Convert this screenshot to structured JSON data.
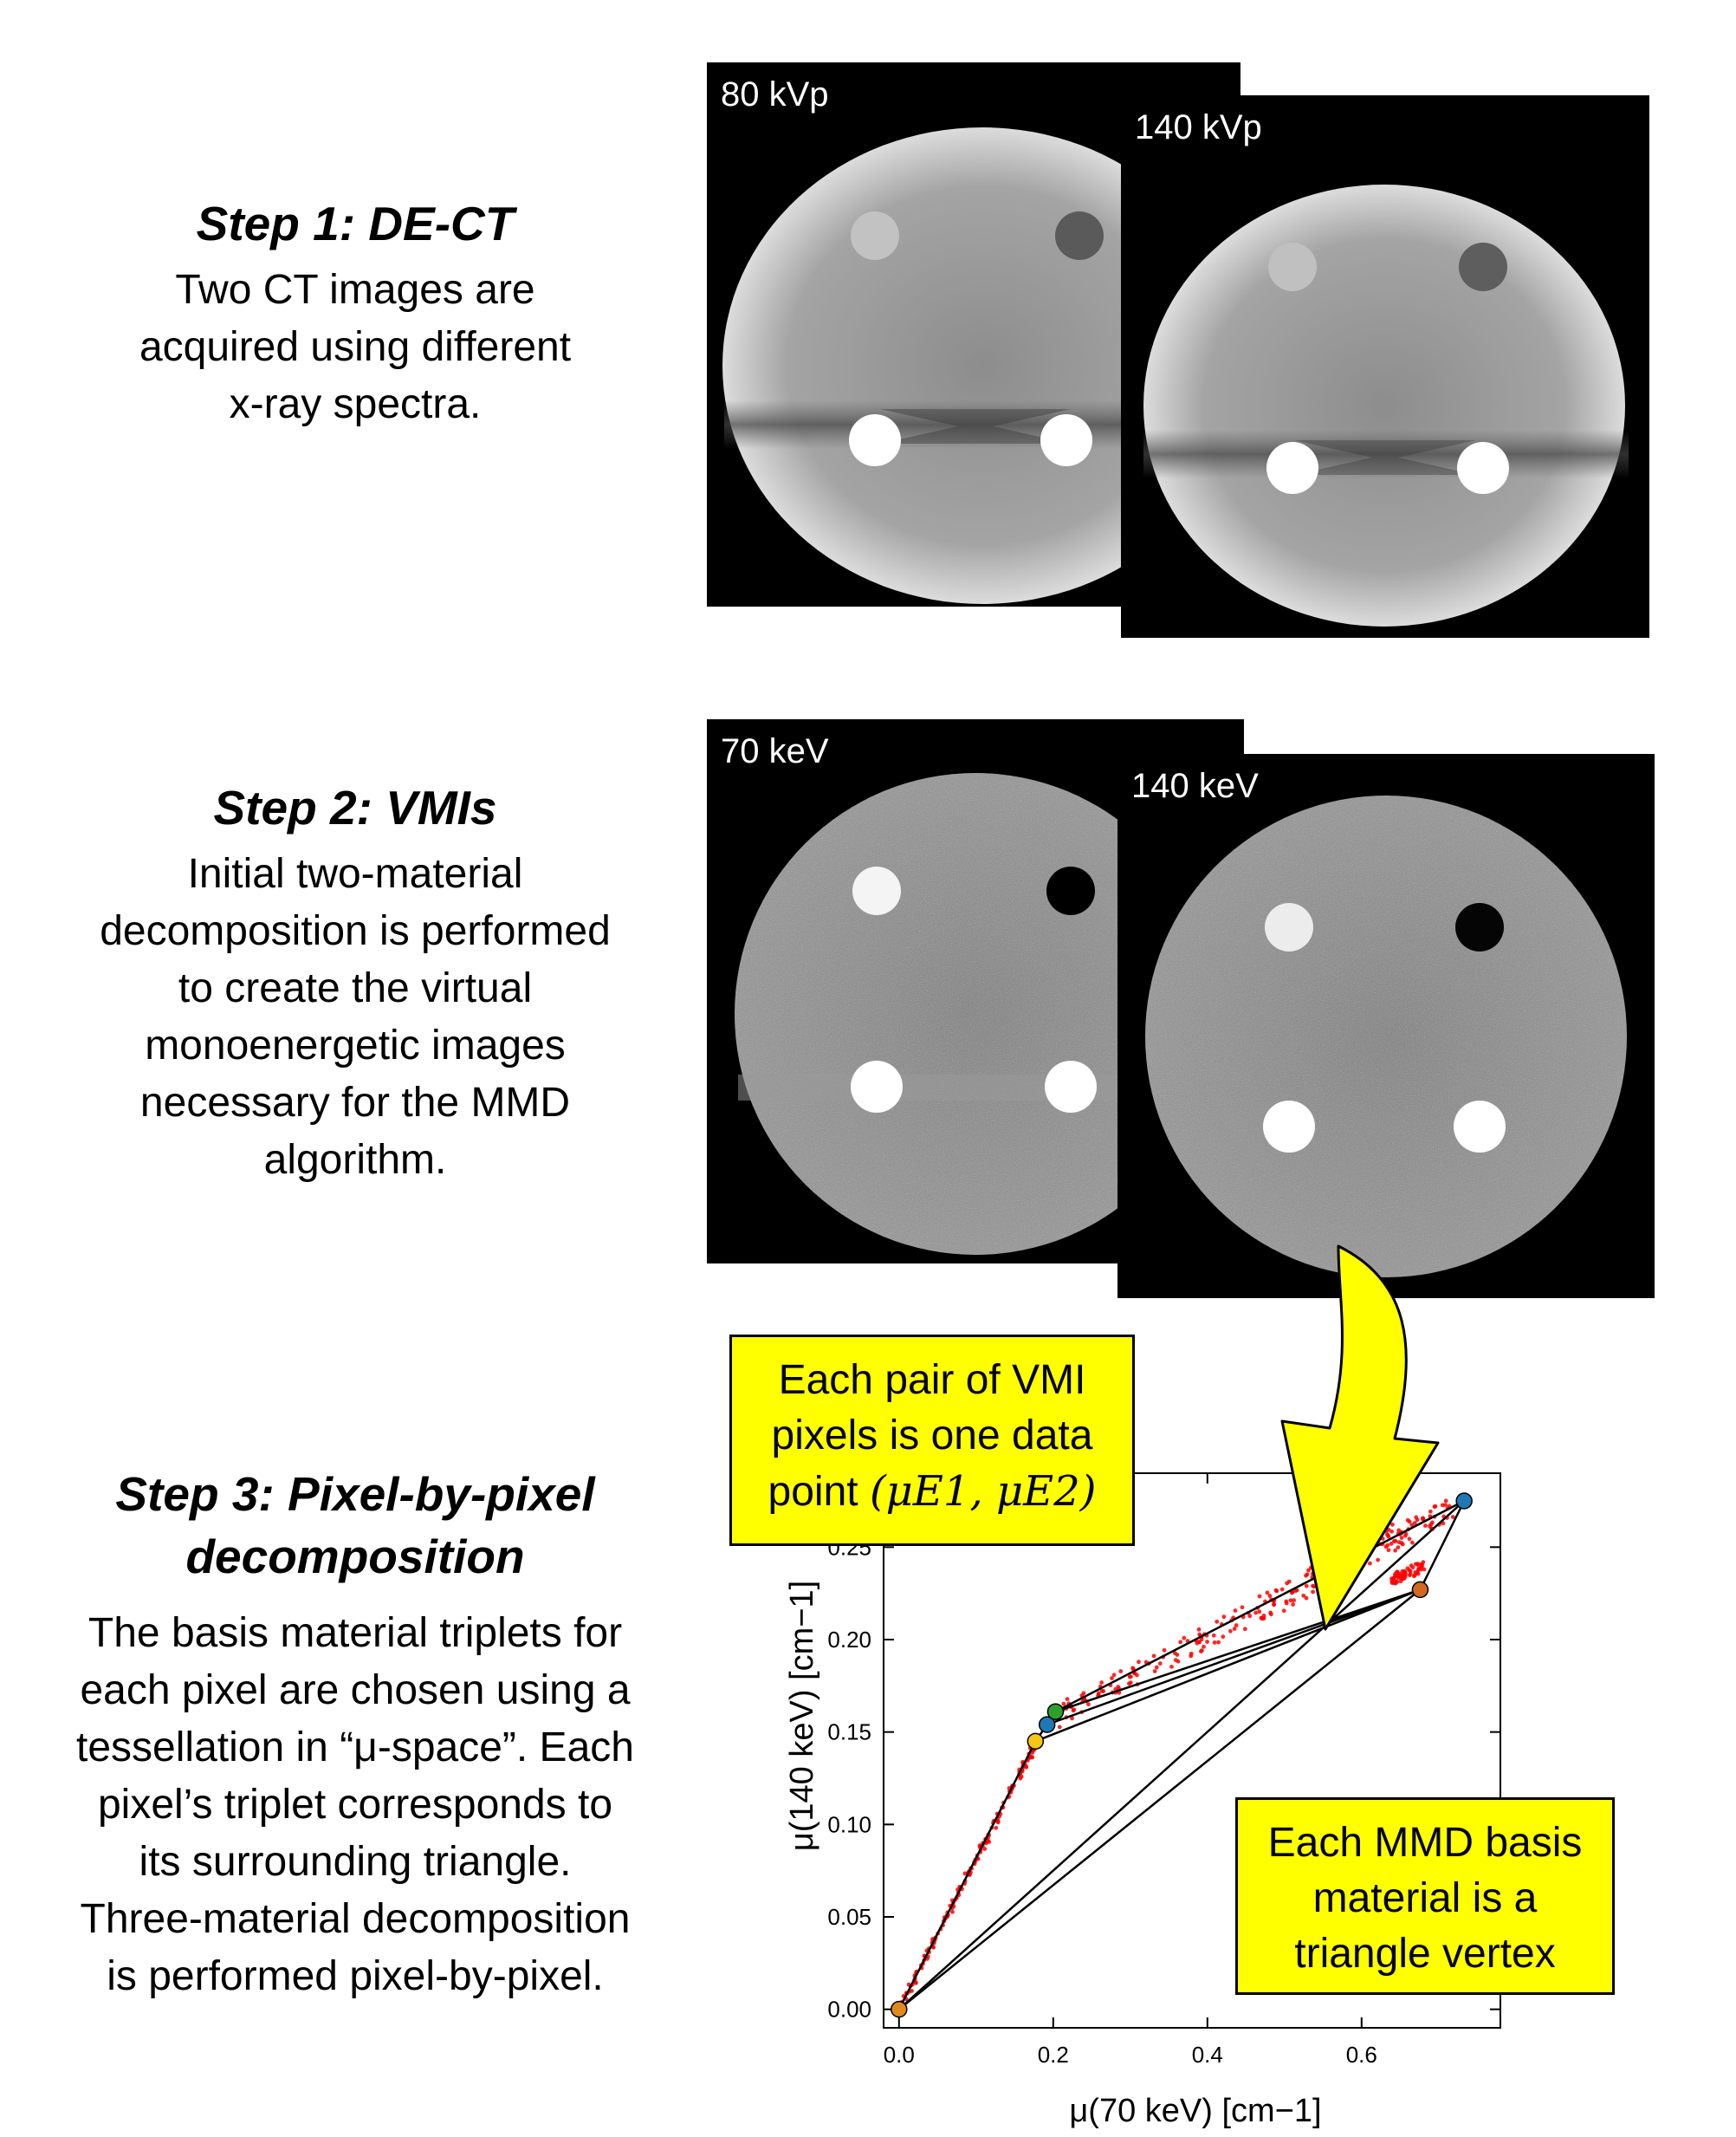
{
  "steps": [
    {
      "title": "Step 1: DE-CT",
      "lines": [
        "Two CT images are",
        "acquired using different",
        "x-ray spectra."
      ]
    },
    {
      "title": "Step 2: VMIs",
      "lines": [
        "Initial two-material",
        "decomposition is performed",
        "to create the virtual",
        "monoenergetic images",
        "necessary for the MMD",
        "algorithm."
      ]
    },
    {
      "title_lines": [
        "Step 3: Pixel-by-pixel",
        "decomposition"
      ],
      "lines": [
        "The basis material triplets for",
        "each pixel are chosen using a",
        "tessellation in “μ-space”. Each",
        "pixel’s triplet corresponds to",
        "its surrounding triangle.",
        "Three-material decomposition",
        "is performed pixel-by-pixel."
      ]
    }
  ],
  "panels": {
    "kvp80": "80 kVp",
    "kvp140": "140 kVp",
    "kev70": "70 keV",
    "kev140": "140 keV"
  },
  "callouts": {
    "pair_lines": [
      "Each pair of VMI",
      "pixels is one data"
    ],
    "pair_point_prefix": "point",
    "pair_point_math": "(μE1, μE2)",
    "vertex_lines": [
      "Each MMD basis",
      "material is a",
      "triangle vertex"
    ]
  },
  "colors": {
    "callout_fill": "#ffff00",
    "data_points": "#ff0000",
    "vertex_blue": "#1f77b4",
    "vertex_green": "#2ca02c",
    "vertex_orange": "#d2691e",
    "vertex_yellow": "#f5c518",
    "vertex_origin": "#e08a1e"
  },
  "chart_data": {
    "type": "scatter",
    "title": "",
    "xlabel": "μ(70 keV) [cm−1]",
    "ylabel": "μ(140 keV) [cm−1]",
    "xlim": [
      -0.02,
      0.78
    ],
    "ylim": [
      -0.01,
      0.29
    ],
    "x_ticks": [
      0.0,
      0.2,
      0.4,
      0.6
    ],
    "x_tick_labels": [
      "0.0",
      "0.2",
      "0.4",
      "0.6"
    ],
    "y_ticks": [
      0.0,
      0.05,
      0.1,
      0.15,
      0.2,
      0.25
    ],
    "y_tick_labels": [
      "0.00",
      "0.05",
      "0.10",
      "0.15",
      "0.20",
      "0.25"
    ],
    "vertices": [
      {
        "name": "origin",
        "x": 0.0,
        "y": 0.0,
        "color": "#e08a1e"
      },
      {
        "name": "yellow",
        "x": 0.177,
        "y": 0.145,
        "color": "#f5c518"
      },
      {
        "name": "blue-low",
        "x": 0.192,
        "y": 0.154,
        "color": "#1f77b4"
      },
      {
        "name": "green",
        "x": 0.203,
        "y": 0.161,
        "color": "#2ca02c"
      },
      {
        "name": "orange",
        "x": 0.676,
        "y": 0.227,
        "color": "#d2691e"
      },
      {
        "name": "blue-high",
        "x": 0.733,
        "y": 0.275,
        "color": "#1f77b4"
      }
    ],
    "edges": [
      [
        0,
        5
      ],
      [
        0,
        4
      ],
      [
        0,
        1
      ],
      [
        1,
        2
      ],
      [
        2,
        3
      ],
      [
        1,
        4
      ],
      [
        2,
        4
      ],
      [
        3,
        4
      ],
      [
        3,
        5
      ],
      [
        4,
        5
      ]
    ],
    "point_clusters": [
      {
        "from": [
          0.0,
          0.0
        ],
        "to": [
          0.18,
          0.146
        ],
        "count": 170,
        "spread": 0.0025
      },
      {
        "from": [
          0.2,
          0.158
        ],
        "to": [
          0.72,
          0.272
        ],
        "count": 260,
        "spread": 0.007
      },
      {
        "from": [
          0.64,
          0.232
        ],
        "to": [
          0.68,
          0.24
        ],
        "count": 60,
        "spread": 0.003
      }
    ]
  }
}
